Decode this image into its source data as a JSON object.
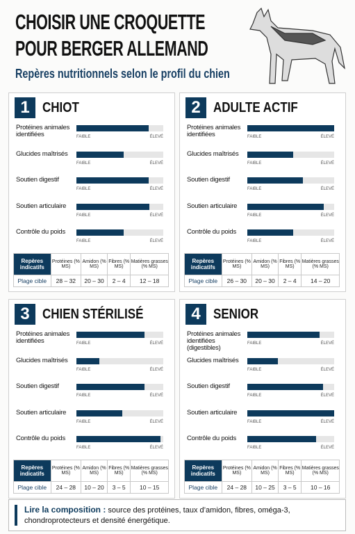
{
  "header": {
    "title_line1": "CHOISIR UNE CROQUETTE",
    "title_line2": "POUR BERGER ALLEMAND",
    "subtitle": "Repères nutritionnels selon le profil du chien"
  },
  "scale": {
    "low": "FAIBLE",
    "high": "ÉLEVÉ"
  },
  "table_header": [
    "Repères indicatifs",
    "Protéines (% MS)",
    "Amidon (% MS)",
    "Fibres (% MS)",
    "Matières grasses (% MS)"
  ],
  "panels": [
    {
      "number": "1",
      "title": "CHIOT",
      "criteria": [
        {
          "label": "Protéines animales identifiées",
          "level": 83
        },
        {
          "label": "Glucides maîtrisés",
          "level": 54
        },
        {
          "label": "Soutien digestif",
          "level": 83
        },
        {
          "label": "Soutien articulaire",
          "level": 84
        },
        {
          "label": "Contrôle du poids",
          "level": 54
        }
      ],
      "row": [
        "Plage cible",
        "28 – 32",
        "20 – 30",
        "2 – 4",
        "12 – 18"
      ]
    },
    {
      "number": "2",
      "title": "ADULTE ACTIF",
      "criteria": [
        {
          "label": "Protéines animales identifiées",
          "level": 100
        },
        {
          "label": "Glucides maîtrisés",
          "level": 53
        },
        {
          "label": "Soutien digestif",
          "level": 64
        },
        {
          "label": "Soutien articulaire",
          "level": 88
        },
        {
          "label": "Contrôle du poids",
          "level": 53
        }
      ],
      "row": [
        "Plage cible",
        "26 – 30",
        "20 – 30",
        "2 – 4",
        "14 – 20"
      ]
    },
    {
      "number": "3",
      "title": "CHIEN STÉRILISÉ",
      "criteria": [
        {
          "label": "Protéines animales identifiées",
          "level": 78
        },
        {
          "label": "Glucides maîtrisés",
          "level": 26
        },
        {
          "label": "Soutien digestif",
          "level": 78
        },
        {
          "label": "Soutien articulaire",
          "level": 53
        },
        {
          "label": "Contrôle du poids",
          "level": 97
        }
      ],
      "row": [
        "Plage cible",
        "24 – 28",
        "10 – 20",
        "3 – 5",
        "10 – 15"
      ]
    },
    {
      "number": "4",
      "title": "SENIOR",
      "criteria": [
        {
          "label": "Protéines animales identifiées (digestibles)",
          "level": 83
        },
        {
          "label": "Glucides maîtrisés",
          "level": 35
        },
        {
          "label": "Soutien digestif",
          "level": 87
        },
        {
          "label": "Soutien articulaire",
          "level": 100
        },
        {
          "label": "Contrôle du poids",
          "level": 79
        }
      ],
      "row": [
        "Plage cible",
        "24 – 28",
        "10 – 25",
        "3 – 5",
        "10 – 16"
      ]
    }
  ],
  "footer": {
    "lead": "Lire la composition :",
    "text": "source des protéines, taux d’amidon, fibres, oméga-3, chondroprotecteurs et densité énergétique."
  }
}
